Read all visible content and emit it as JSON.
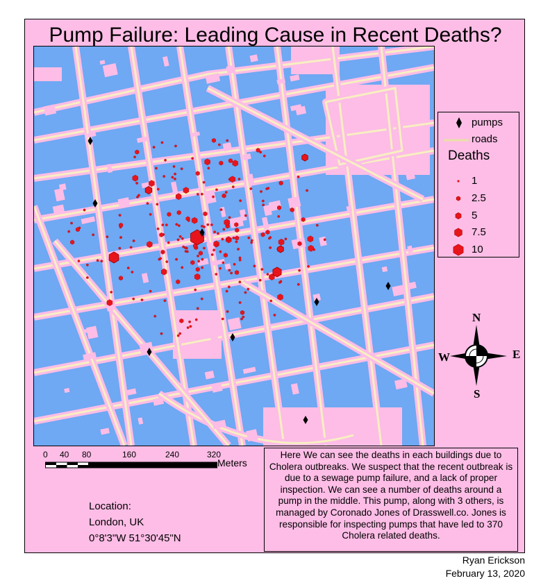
{
  "title": "Pump Failure: Leading Cause in Recent Deaths?",
  "legend": {
    "pumps_label": "pumps",
    "roads_label": "roads",
    "deaths_title": "Deaths",
    "death_classes": [
      "1",
      "2.5",
      "5",
      "7.5",
      "10"
    ]
  },
  "north_arrow": {
    "n": "N",
    "s": "S",
    "e": "E",
    "w": "W"
  },
  "scale_bar": {
    "ticks": [
      "0",
      "40",
      "80",
      "160",
      "240",
      "320"
    ],
    "unit": "Meters"
  },
  "location": {
    "label": "Location:",
    "place": "London, UK",
    "coords": "0°8'3\"W 51°30'45\"N"
  },
  "description": "Here We can see the deaths in each buildings due to Cholera outbreaks. We suspect that the recent outbreak is due to a sewage pump failure, and a lack of proper inspection. We can see a number of deaths around a pump in the middle. This pump, along with 3 others, is managed by Coronado Jones of Drasswell.co. Jones is responsible for inspecting pumps that have led to 370 Cholera related deaths.",
  "credit": {
    "author": "Ryan Erickson",
    "date": "February 13, 2020"
  },
  "colors": {
    "background": "#fdbde6",
    "buildings": "#6fa8f3",
    "roads": "#f7efc2",
    "deaths": "#e8141c",
    "pumps": "#000000"
  }
}
